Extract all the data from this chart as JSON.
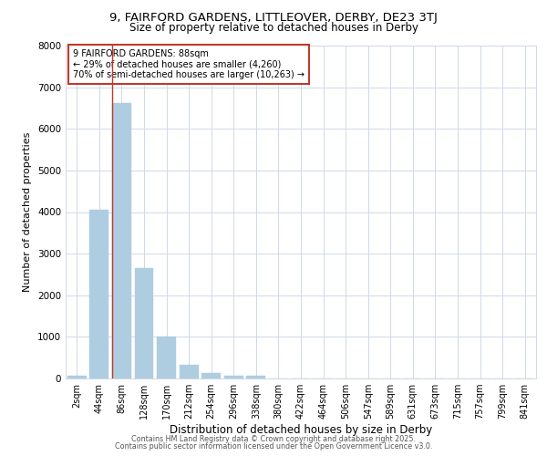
{
  "title1": "9, FAIRFORD GARDENS, LITTLEOVER, DERBY, DE23 3TJ",
  "title2": "Size of property relative to detached houses in Derby",
  "xlabel": "Distribution of detached houses by size in Derby",
  "ylabel": "Number of detached properties",
  "annotation_title": "9 FAIRFORD GARDENS: 88sqm",
  "annotation_line1": "← 29% of detached houses are smaller (4,260)",
  "annotation_line2": "70% of semi-detached houses are larger (10,263) →",
  "bar_color": "#aecde1",
  "bar_edge_color": "#aecde1",
  "vline_color": "#c0392b",
  "annotation_box_color": "#c0392b",
  "fig_bg_color": "#ffffff",
  "plot_bg_color": "#ffffff",
  "grid_color": "#d0d8e8",
  "categories": [
    "2sqm",
    "44sqm",
    "86sqm",
    "128sqm",
    "170sqm",
    "212sqm",
    "254sqm",
    "296sqm",
    "338sqm",
    "380sqm",
    "422sqm",
    "464sqm",
    "506sqm",
    "547sqm",
    "589sqm",
    "631sqm",
    "673sqm",
    "715sqm",
    "757sqm",
    "799sqm",
    "841sqm"
  ],
  "values": [
    60,
    4050,
    6620,
    2650,
    1010,
    330,
    125,
    75,
    60,
    0,
    0,
    0,
    0,
    0,
    0,
    0,
    0,
    0,
    0,
    0,
    0
  ],
  "vline_index": 2,
  "ylim": [
    0,
    8000
  ],
  "yticks": [
    0,
    1000,
    2000,
    3000,
    4000,
    5000,
    6000,
    7000,
    8000
  ],
  "footer1": "Contains HM Land Registry data © Crown copyright and database right 2025.",
  "footer2": "Contains public sector information licensed under the Open Government Licence v3.0."
}
